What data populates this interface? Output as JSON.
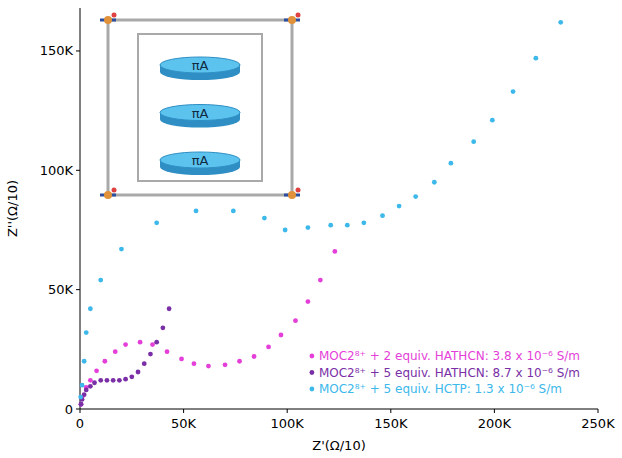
{
  "chart_data": {
    "type": "scatter",
    "x_label": "Z'(Ω/10)",
    "y_label": "Z''(Ω/10)",
    "xlim": [
      0,
      250000
    ],
    "ylim": [
      0,
      168000
    ],
    "xticks": [
      0,
      {
        "value": 50000,
        "label": "50K"
      },
      {
        "value": 100000,
        "label": "100K"
      },
      {
        "value": 150000,
        "label": "150K"
      },
      {
        "value": 200000,
        "label": "200K"
      },
      {
        "value": 250000,
        "label": "250K"
      }
    ],
    "yticks": [
      0,
      {
        "value": 50000,
        "label": "50K"
      },
      {
        "value": 100000,
        "label": "100K"
      },
      {
        "value": 150000,
        "label": "150K"
      }
    ],
    "legend": "lower right",
    "marker": "circle",
    "annotations": [
      "πA",
      "πA",
      "πA"
    ],
    "series": [
      {
        "name": "MOC2⁸⁺ + 2 equiv. HATHCN: 3.8 x 10⁻⁶ S/m",
        "color": "#e43fd9",
        "x": [
          500,
          1000,
          3000,
          5000,
          8000,
          12000,
          17000,
          22000,
          29000,
          35000,
          42000,
          49000,
          55000,
          62000,
          70000,
          77000,
          84000,
          91000,
          97000,
          104000,
          110000,
          116000,
          123000
        ],
        "values": [
          2000,
          5000,
          9000,
          12000,
          16000,
          20000,
          24000,
          27000,
          28000,
          27000,
          24000,
          21000,
          19000,
          18000,
          18500,
          20000,
          22000,
          26000,
          31000,
          37000,
          45000,
          54000,
          66000
        ]
      },
      {
        "name": "MOC2⁸⁺ + 5 equiv. HATHCN: 8.7 x 10⁻⁶ S/m",
        "color": "#7a2fa6",
        "x": [
          500,
          1000,
          2000,
          3000,
          5000,
          7000,
          10000,
          13000,
          16000,
          19000,
          22000,
          25000,
          28000,
          31000,
          34000,
          37000,
          40000,
          43000
        ],
        "values": [
          2000,
          4000,
          6000,
          8000,
          9500,
          11000,
          12000,
          12000,
          12000,
          12000,
          12500,
          13500,
          15500,
          19000,
          23000,
          28000,
          34000,
          42000
        ]
      },
      {
        "name": "MOC2⁸⁺ + 5 equiv. HCTP: 1.3 x 10⁻⁶ S/m",
        "color": "#3cb8ea",
        "x": [
          300,
          1000,
          2000,
          3000,
          5000,
          10000,
          20000,
          37000,
          56000,
          74000,
          89000,
          99000,
          110000,
          121000,
          129000,
          137000,
          146000,
          154000,
          162000,
          171000,
          179000,
          190000,
          199000,
          209000,
          220000,
          232000
        ],
        "values": [
          5000,
          10000,
          20000,
          32000,
          42000,
          54000,
          67000,
          78000,
          83000,
          83000,
          80000,
          75000,
          76000,
          77000,
          77000,
          78000,
          81000,
          85000,
          89000,
          95000,
          103000,
          112000,
          121000,
          133000,
          147000,
          162000
        ]
      }
    ]
  }
}
